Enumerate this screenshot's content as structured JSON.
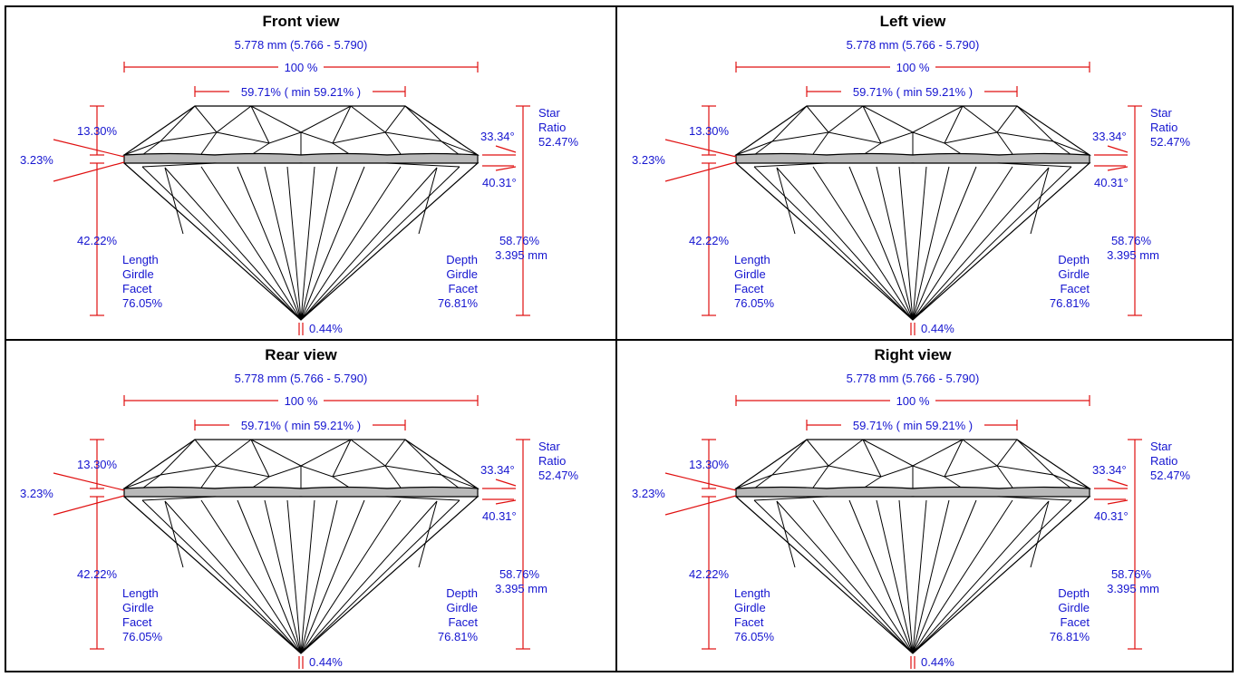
{
  "panels": [
    {
      "title": "Front view"
    },
    {
      "title": "Left view"
    },
    {
      "title": "Rear view"
    },
    {
      "title": "Right view"
    }
  ],
  "measurements": {
    "diameter": "5.778 mm (5.766 - 5.790)",
    "width_pct": "100 %",
    "table": "59.71% ( min 59.21% )",
    "crown_height": "13.30%",
    "girdle_thickness": "3.23%",
    "pavilion_depth": "42.22%",
    "crown_angle": "33.34°",
    "pavilion_angle": "40.31°",
    "star_label_1": "Star",
    "star_label_2": "Ratio",
    "star_ratio": "52.47%",
    "total_depth_pct": "58.76%",
    "total_depth_mm": "3.395 mm",
    "length_label_1": "Length",
    "length_label_2": "Girdle",
    "length_label_3": "Facet",
    "length_value": "76.05%",
    "depth_label_1": "Depth",
    "depth_label_2": "Girdle",
    "depth_label_3": "Facet",
    "depth_value": "76.81%",
    "culet": "0.44%"
  },
  "colors": {
    "annotation_text": "#1515d0",
    "dimension_lines": "#e01010",
    "girdle_fill": "#b9b9b9"
  }
}
